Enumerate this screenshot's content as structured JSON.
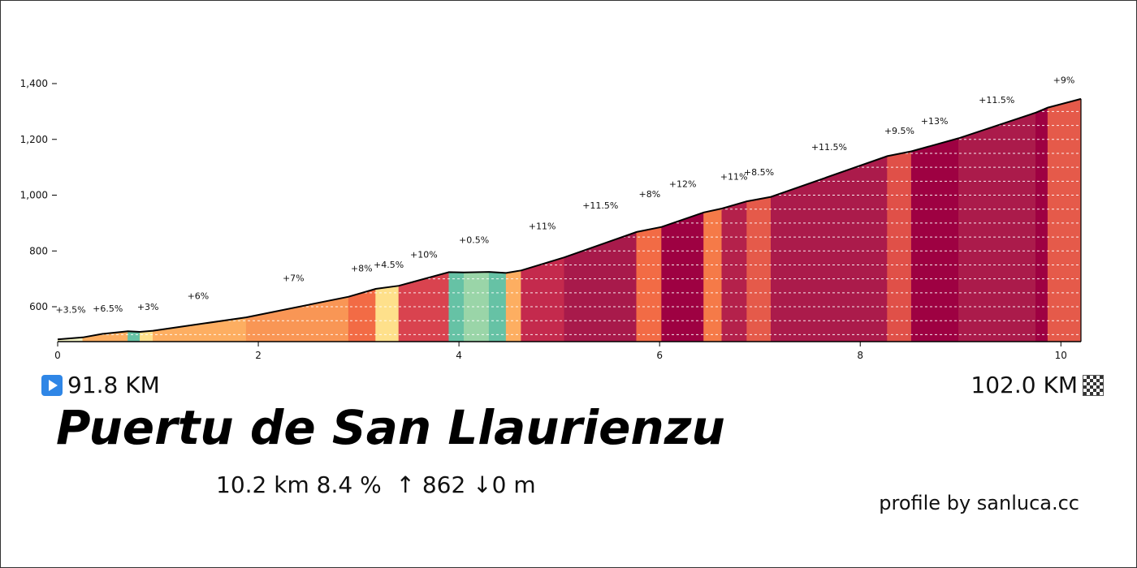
{
  "chart_data": {
    "type": "area",
    "x_unit": "km",
    "y_unit": "m",
    "xlim": [
      0,
      10.2
    ],
    "ylim": [
      475,
      1400
    ],
    "x_ticks": [
      0,
      2,
      4,
      6,
      8,
      10
    ],
    "y_ticks": [
      600,
      800,
      1000,
      1200,
      1400
    ],
    "y_tick_labels": [
      "600",
      "800",
      "1,000",
      "1,200",
      "1,400"
    ],
    "x_tick_labels": [
      "0",
      "2",
      "4",
      "6",
      "8",
      "10"
    ],
    "gridlines_y": [
      500,
      550,
      600,
      650,
      700,
      750,
      800,
      850,
      900,
      950,
      1000,
      1050,
      1100,
      1150,
      1200,
      1250,
      1300
    ],
    "profile": [
      {
        "x": 0.0,
        "y": 483
      },
      {
        "x": 0.25,
        "y": 490
      },
      {
        "x": 0.45,
        "y": 503
      },
      {
        "x": 0.7,
        "y": 512
      },
      {
        "x": 0.82,
        "y": 510
      },
      {
        "x": 0.95,
        "y": 514
      },
      {
        "x": 1.3,
        "y": 532
      },
      {
        "x": 1.88,
        "y": 562
      },
      {
        "x": 2.9,
        "y": 636
      },
      {
        "x": 3.17,
        "y": 664
      },
      {
        "x": 3.4,
        "y": 675
      },
      {
        "x": 3.9,
        "y": 724
      },
      {
        "x": 4.05,
        "y": 723
      },
      {
        "x": 4.3,
        "y": 725
      },
      {
        "x": 4.47,
        "y": 721
      },
      {
        "x": 4.62,
        "y": 730
      },
      {
        "x": 5.05,
        "y": 777
      },
      {
        "x": 5.77,
        "y": 868
      },
      {
        "x": 6.02,
        "y": 886
      },
      {
        "x": 6.44,
        "y": 938
      },
      {
        "x": 6.62,
        "y": 952
      },
      {
        "x": 6.87,
        "y": 978
      },
      {
        "x": 7.11,
        "y": 994
      },
      {
        "x": 8.27,
        "y": 1140
      },
      {
        "x": 8.51,
        "y": 1157
      },
      {
        "x": 8.98,
        "y": 1204
      },
      {
        "x": 9.75,
        "y": 1296
      },
      {
        "x": 9.87,
        "y": 1314
      },
      {
        "x": 10.2,
        "y": 1345
      }
    ],
    "segments": [
      {
        "from": 0.0,
        "to": 0.25,
        "color": "#f3f3c4",
        "grade": "+3.5%"
      },
      {
        "from": 0.25,
        "to": 0.7,
        "color": "#fdae61",
        "grade": "+6.5%"
      },
      {
        "from": 0.7,
        "to": 0.82,
        "color": "#66c2a5",
        "grade": ""
      },
      {
        "from": 0.82,
        "to": 0.95,
        "color": "#fee08b",
        "grade": "+3%"
      },
      {
        "from": 0.95,
        "to": 1.88,
        "color": "#fdae61",
        "grade": "+6%"
      },
      {
        "from": 1.88,
        "to": 2.9,
        "color": "#f99655",
        "grade": "+7%"
      },
      {
        "from": 2.9,
        "to": 3.17,
        "color": "#f26b45",
        "grade": "+8%"
      },
      {
        "from": 3.17,
        "to": 3.4,
        "color": "#fee08b",
        "grade": "+4.5%"
      },
      {
        "from": 3.4,
        "to": 3.9,
        "color": "#d9434f",
        "grade": "+10%"
      },
      {
        "from": 3.9,
        "to": 4.05,
        "color": "#66c2a5",
        "grade": ""
      },
      {
        "from": 4.05,
        "to": 4.3,
        "color": "#9ad5a8",
        "grade": "+0.5%"
      },
      {
        "from": 4.3,
        "to": 4.47,
        "color": "#66c2a5",
        "grade": ""
      },
      {
        "from": 4.47,
        "to": 4.62,
        "color": "#fdae61",
        "grade": ""
      },
      {
        "from": 4.62,
        "to": 5.05,
        "color": "#c42a4d",
        "grade": "+11%"
      },
      {
        "from": 5.05,
        "to": 5.77,
        "color": "#a81a4b",
        "grade": "+11.5%"
      },
      {
        "from": 5.77,
        "to": 6.02,
        "color": "#f26b45",
        "grade": "+8%"
      },
      {
        "from": 6.02,
        "to": 6.44,
        "color": "#9e0142",
        "grade": "+12%"
      },
      {
        "from": 6.44,
        "to": 6.62,
        "color": "#f57a48",
        "grade": ""
      },
      {
        "from": 6.62,
        "to": 6.87,
        "color": "#b4214b",
        "grade": "+11%"
      },
      {
        "from": 6.87,
        "to": 7.11,
        "color": "#e55a4a",
        "grade": "+8.5%"
      },
      {
        "from": 7.11,
        "to": 8.27,
        "color": "#ab1b4b",
        "grade": "+11.5%"
      },
      {
        "from": 8.27,
        "to": 8.51,
        "color": "#e05048",
        "grade": "+9.5%"
      },
      {
        "from": 8.51,
        "to": 8.98,
        "color": "#9e0142",
        "grade": "+13%"
      },
      {
        "from": 8.98,
        "to": 9.75,
        "color": "#ab1b4b",
        "grade": "+11.5%"
      },
      {
        "from": 9.75,
        "to": 9.87,
        "color": "#9e0142",
        "grade": ""
      },
      {
        "from": 9.87,
        "to": 10.2,
        "color": "#e55a4a",
        "grade": "+9%"
      }
    ],
    "grade_labels": [
      {
        "text": "+3.5%",
        "x": 0.13,
        "y": 578
      },
      {
        "text": "+6.5%",
        "x": 0.5,
        "y": 582
      },
      {
        "text": "+3%",
        "x": 0.9,
        "y": 588
      },
      {
        "text": "+6%",
        "x": 1.4,
        "y": 627
      },
      {
        "text": "+7%",
        "x": 2.35,
        "y": 691
      },
      {
        "text": "+8%",
        "x": 3.03,
        "y": 727
      },
      {
        "text": "+4.5%",
        "x": 3.3,
        "y": 740
      },
      {
        "text": "+10%",
        "x": 3.65,
        "y": 776
      },
      {
        "text": "+0.5%",
        "x": 4.15,
        "y": 829
      },
      {
        "text": "+11%",
        "x": 4.83,
        "y": 878
      },
      {
        "text": "+11.5%",
        "x": 5.41,
        "y": 952
      },
      {
        "text": "+8%",
        "x": 5.9,
        "y": 993
      },
      {
        "text": "+12%",
        "x": 6.23,
        "y": 1029
      },
      {
        "text": "+11%",
        "x": 6.74,
        "y": 1056
      },
      {
        "text": "+8.5%",
        "x": 6.99,
        "y": 1072
      },
      {
        "text": "+11.5%",
        "x": 7.69,
        "y": 1162
      },
      {
        "text": "+9.5%",
        "x": 8.39,
        "y": 1219
      },
      {
        "text": "+13%",
        "x": 8.74,
        "y": 1254
      },
      {
        "text": "+11.5%",
        "x": 9.36,
        "y": 1330
      },
      {
        "text": "+9%",
        "x": 10.03,
        "y": 1401
      }
    ]
  },
  "start": {
    "label": "91.8 KM",
    "icon": "play-icon"
  },
  "end": {
    "label": "102.0 KM",
    "icon": "checkered-flag-icon"
  },
  "climb": {
    "name": "Puertu de San Llaurienzu",
    "stats": "10.2 km 8.4 %  ↑ 862 ↓0 m"
  },
  "credit": "profile by sanluca.cc",
  "colors": {
    "line": "#000000",
    "grid": "#ffffff",
    "axis": "#000000"
  }
}
